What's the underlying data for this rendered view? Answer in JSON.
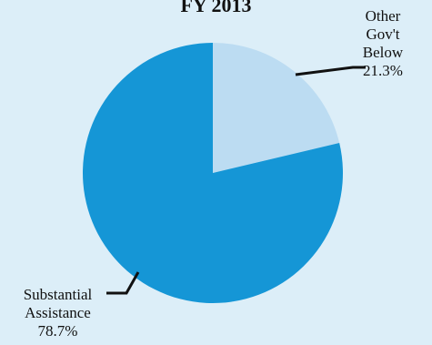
{
  "chart_data": {
    "type": "pie",
    "title": "FY 2013",
    "slices": [
      {
        "label_lines": [
          "Other",
          "Gov't",
          "Below"
        ],
        "value": 21.3,
        "value_label": "21.3%",
        "color": "#bcdcf2"
      },
      {
        "label_lines": [
          "Substantial",
          "Assistance"
        ],
        "value": 78.7,
        "value_label": "78.7%",
        "color": "#1596d6"
      }
    ],
    "start_angle_deg": 0,
    "direction": "clockwise",
    "leader_line_color": "#111111"
  }
}
